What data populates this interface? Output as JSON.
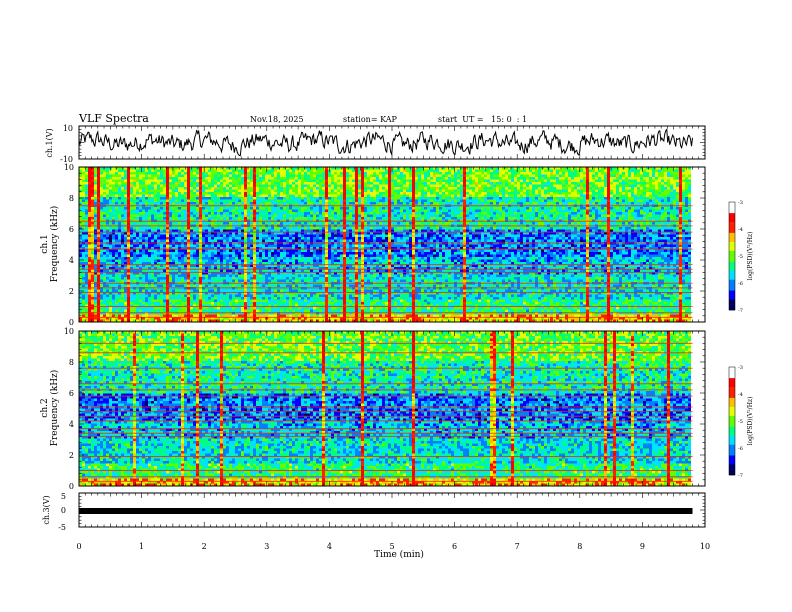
{
  "header": {
    "title": "VLF Spectra",
    "date": "Nov.18, 2025",
    "station": "station= KAP",
    "start": "start  UT =   15: 0  : 1"
  },
  "colors": {
    "colormap": [
      "#000060",
      "#0000ff",
      "#0080ff",
      "#00e0ff",
      "#00ff80",
      "#60ff00",
      "#e0ff00",
      "#ffc000",
      "#ff2000",
      "#ff0000",
      "#ffffff"
    ],
    "trace": "#000000"
  },
  "chart_data": [
    {
      "type": "line",
      "name": "ch1-waveform",
      "ylabel": "ch.1(V)",
      "ylim": [
        -10,
        10
      ],
      "yticks": [
        "10",
        "-10"
      ],
      "xlim": [
        0,
        10
      ],
      "description_values": "noise waveform fluctuating roughly between -8 and 8 V over 0 to 9.8 min"
    },
    {
      "type": "heatmap",
      "name": "ch1-spectrogram",
      "ylabel_line1": "ch.1",
      "ylabel_line2": "Frequency (kHz)",
      "ylim": [
        0,
        10
      ],
      "yticks": [
        "0",
        "2",
        "4",
        "6",
        "8",
        "10"
      ],
      "xlim": [
        0,
        10
      ],
      "data_xmax": 9.8,
      "colorbar": {
        "label": "log(PSD)(V²/Hz)",
        "range": [
          -7,
          -3
        ],
        "ticks": [
          "-3",
          "-4",
          "-5",
          "-6",
          "-7"
        ]
      },
      "bands_khz": [
        0.3,
        0.6,
        1.0,
        1.9,
        2.2,
        2.5,
        3.2,
        3.4,
        3.7,
        4.7,
        5.1,
        5.8,
        6.2,
        6.5,
        7.5
      ]
    },
    {
      "type": "heatmap",
      "name": "ch2-spectrogram",
      "ylabel_line1": "ch.2",
      "ylabel_line2": "Frequency (kHz)",
      "ylim": [
        0,
        10
      ],
      "yticks": [
        "0",
        "2",
        "4",
        "6",
        "8",
        "10"
      ],
      "xlim": [
        0,
        10
      ],
      "data_xmax": 9.8,
      "colorbar": {
        "label": "log(PSD)(V²/Hz)",
        "range": [
          -7,
          -3
        ],
        "ticks": [
          "-3",
          "-4",
          "-5",
          "-6",
          "-7"
        ]
      },
      "bands_khz": [
        0.3,
        0.6,
        1.0,
        1.9,
        3.2,
        3.4,
        3.7,
        4.2,
        4.5,
        4.8,
        5.1,
        5.8,
        6.2,
        6.6,
        7.6,
        8.6,
        9.2
      ]
    },
    {
      "type": "line",
      "name": "ch3-waveform",
      "ylabel": "ch.3(V)",
      "ylim": [
        -5,
        5
      ],
      "yticks": [
        "5",
        "0",
        "-5"
      ],
      "xlim": [
        0,
        10
      ],
      "xlabel": "Time (min)",
      "xticks": [
        "0",
        "1",
        "2",
        "3",
        "4",
        "5",
        "6",
        "7",
        "8",
        "9",
        "10"
      ],
      "level_v": -0.3,
      "data_xmax": 9.8
    }
  ]
}
